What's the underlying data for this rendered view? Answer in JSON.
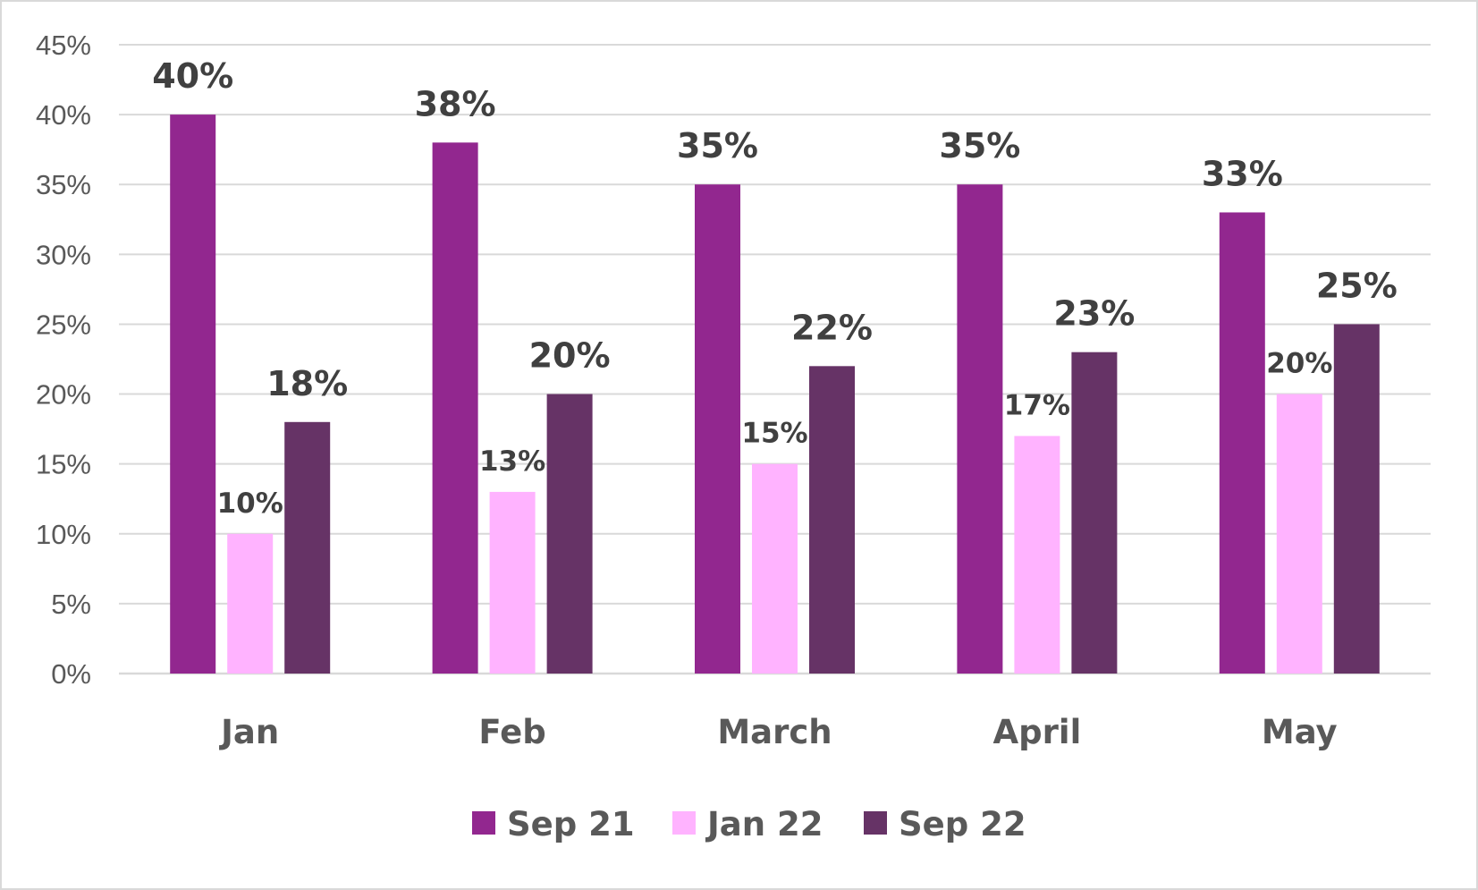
{
  "chart_data": {
    "type": "bar",
    "categories": [
      "Jan",
      "Feb",
      "March",
      "April",
      "May"
    ],
    "series": [
      {
        "name": "Sep 21",
        "color": "#92278f",
        "values": [
          40,
          38,
          35,
          35,
          33
        ],
        "labels": [
          "40%",
          "38%",
          "35%",
          "35%",
          "33%"
        ]
      },
      {
        "name": "Jan 22",
        "color": "#ffb3ff",
        "values": [
          10,
          13,
          15,
          17,
          20
        ],
        "labels": [
          "10%",
          "13%",
          "15%",
          "17%",
          "20%"
        ]
      },
      {
        "name": "Sep 22",
        "color": "#663366",
        "values": [
          18,
          20,
          22,
          23,
          25
        ],
        "labels": [
          "18%",
          "20%",
          "22%",
          "23%",
          "25%"
        ]
      }
    ],
    "y_ticks": [
      0,
      5,
      10,
      15,
      20,
      25,
      30,
      35,
      40,
      45
    ],
    "y_tick_labels": [
      "0%",
      "5%",
      "10%",
      "15%",
      "20%",
      "25%",
      "30%",
      "35%",
      "40%",
      "45%"
    ],
    "ylim": [
      0,
      45
    ],
    "grid": true,
    "gridline_color": "#d9d9d9",
    "legend_position": "bottom",
    "title": "",
    "xlabel": "",
    "ylabel": ""
  }
}
